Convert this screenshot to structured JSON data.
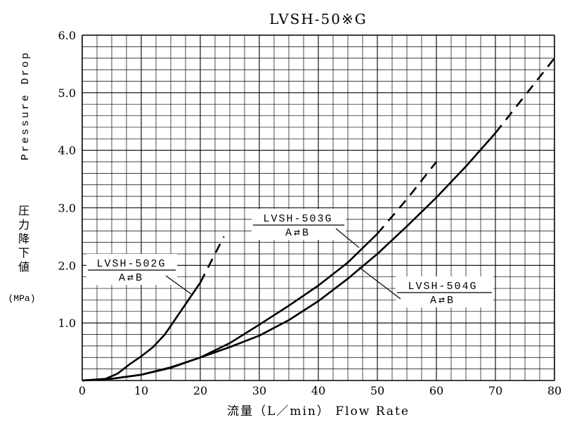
{
  "chart_data": {
    "type": "line",
    "title": "LVSH-50※G",
    "xlabel": "流量（L／min）  Flow Rate",
    "ylabel": {
      "en": "Pressure Drop",
      "ja": [
        "圧",
        "力",
        "降",
        "下",
        "値"
      ],
      "unit": "(MPa)"
    },
    "xlim": [
      0,
      80
    ],
    "ylim": [
      0,
      6.0
    ],
    "x_ticks": [
      "0",
      "10",
      "20",
      "30",
      "40",
      "50",
      "60",
      "70",
      "80"
    ],
    "y_ticks": [
      "1.0",
      "2.0",
      "3.0",
      "4.0",
      "5.0",
      "6.0"
    ],
    "grid": true,
    "series": [
      {
        "name": "LVSH-502G",
        "label_lines": [
          "LVSH-502G",
          "A⇄B"
        ],
        "solid": [
          [
            0,
            0
          ],
          [
            4,
            0.03
          ],
          [
            6,
            0.12
          ],
          [
            8,
            0.28
          ],
          [
            10,
            0.42
          ],
          [
            12,
            0.58
          ],
          [
            14,
            0.8
          ],
          [
            16,
            1.1
          ],
          [
            18,
            1.4
          ],
          [
            20,
            1.7
          ]
        ],
        "dashed": [
          [
            20,
            1.7
          ],
          [
            22,
            2.1
          ],
          [
            24,
            2.5
          ]
        ]
      },
      {
        "name": "LVSH-503G",
        "label_lines": [
          "LVSH-503G",
          "A⇄B"
        ],
        "solid": [
          [
            0,
            0
          ],
          [
            5,
            0.03
          ],
          [
            10,
            0.1
          ],
          [
            15,
            0.22
          ],
          [
            20,
            0.4
          ],
          [
            25,
            0.65
          ],
          [
            30,
            0.97
          ],
          [
            35,
            1.3
          ],
          [
            40,
            1.65
          ],
          [
            45,
            2.05
          ],
          [
            50,
            2.55
          ]
        ],
        "dashed": [
          [
            50,
            2.55
          ],
          [
            55,
            3.15
          ],
          [
            60,
            3.8
          ]
        ]
      },
      {
        "name": "LVSH-504G",
        "label_lines": [
          "LVSH-504G",
          "A⇄B"
        ],
        "solid": [
          [
            0,
            0
          ],
          [
            5,
            0.03
          ],
          [
            10,
            0.1
          ],
          [
            15,
            0.23
          ],
          [
            20,
            0.4
          ],
          [
            25,
            0.58
          ],
          [
            30,
            0.78
          ],
          [
            35,
            1.05
          ],
          [
            40,
            1.38
          ],
          [
            45,
            1.77
          ],
          [
            50,
            2.2
          ],
          [
            55,
            2.68
          ],
          [
            60,
            3.18
          ],
          [
            65,
            3.72
          ],
          [
            70,
            4.3
          ]
        ],
        "dashed": [
          [
            70,
            4.3
          ],
          [
            75,
            4.95
          ],
          [
            80,
            5.6
          ]
        ]
      }
    ]
  }
}
